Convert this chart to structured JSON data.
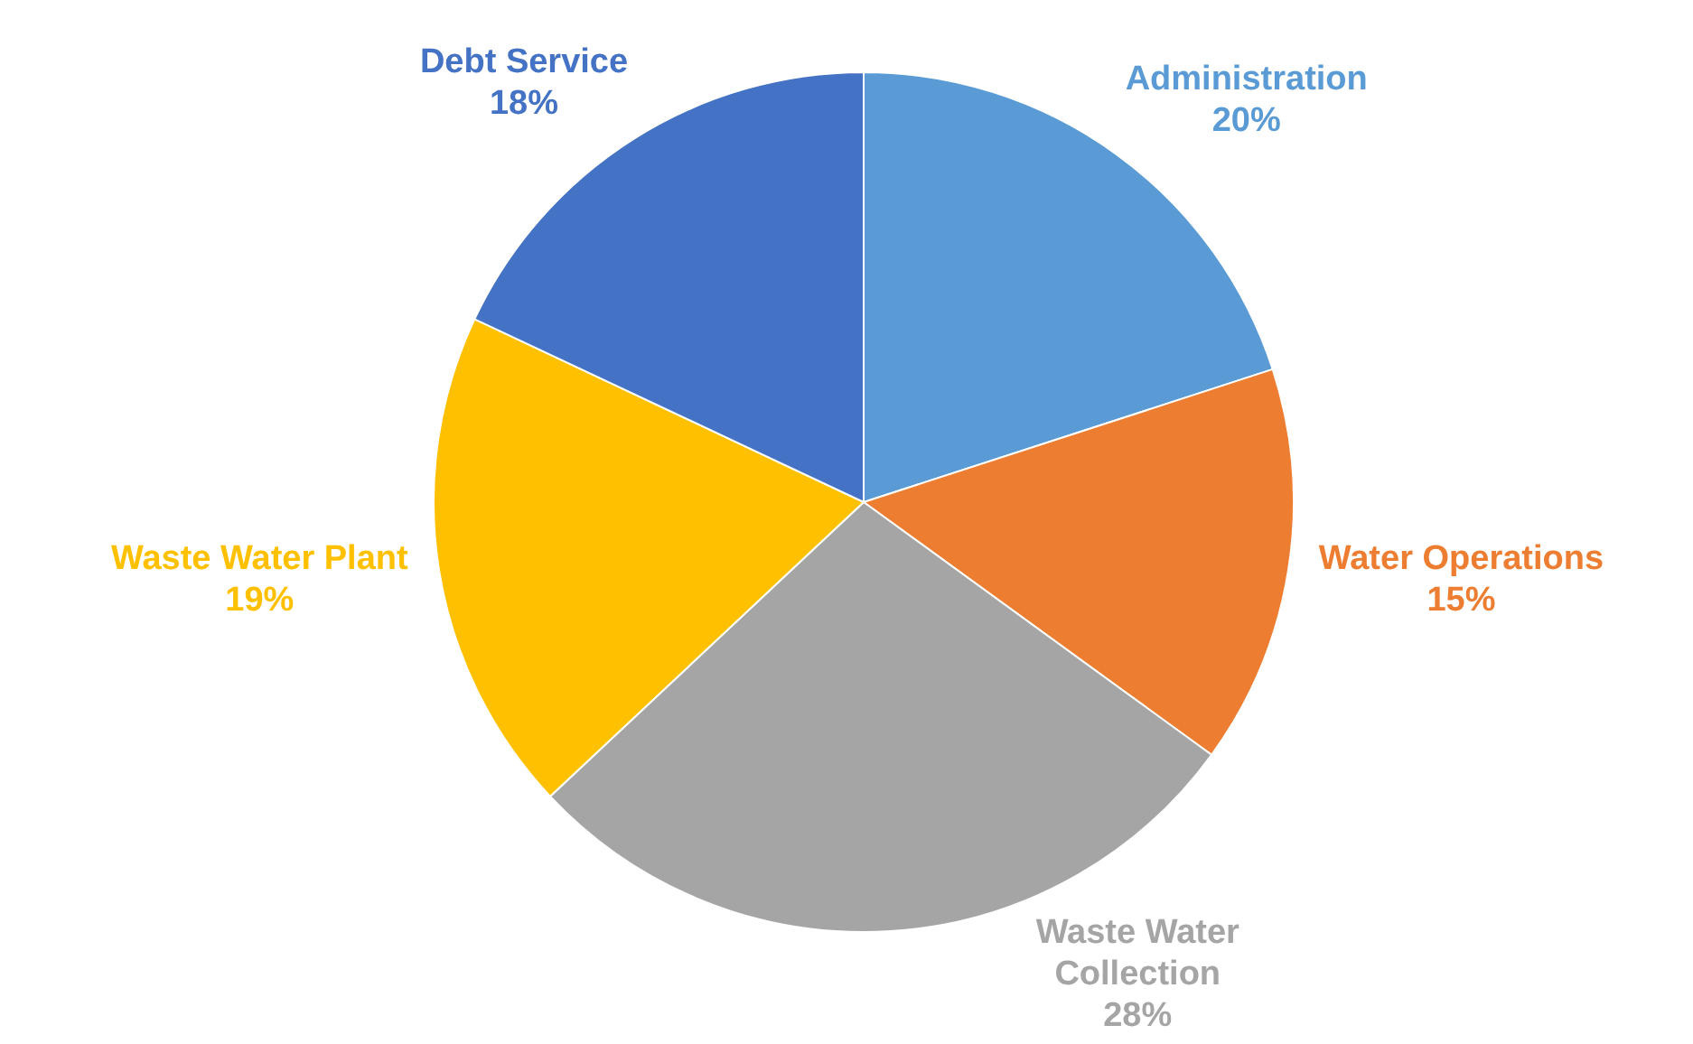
{
  "chart_data": {
    "type": "pie",
    "categories": [
      "Administration",
      "Water Operations",
      "Waste Water Collection",
      "Waste Water Plant",
      "Debt Service"
    ],
    "values": [
      20,
      15,
      28,
      19,
      18
    ],
    "value_labels": [
      "20%",
      "15%",
      "28%",
      "19%",
      "18%"
    ],
    "colors": [
      "#5b9bd5",
      "#ed7d31",
      "#a5a5a5",
      "#ffc000",
      "#4472c4"
    ],
    "legend": false
  }
}
